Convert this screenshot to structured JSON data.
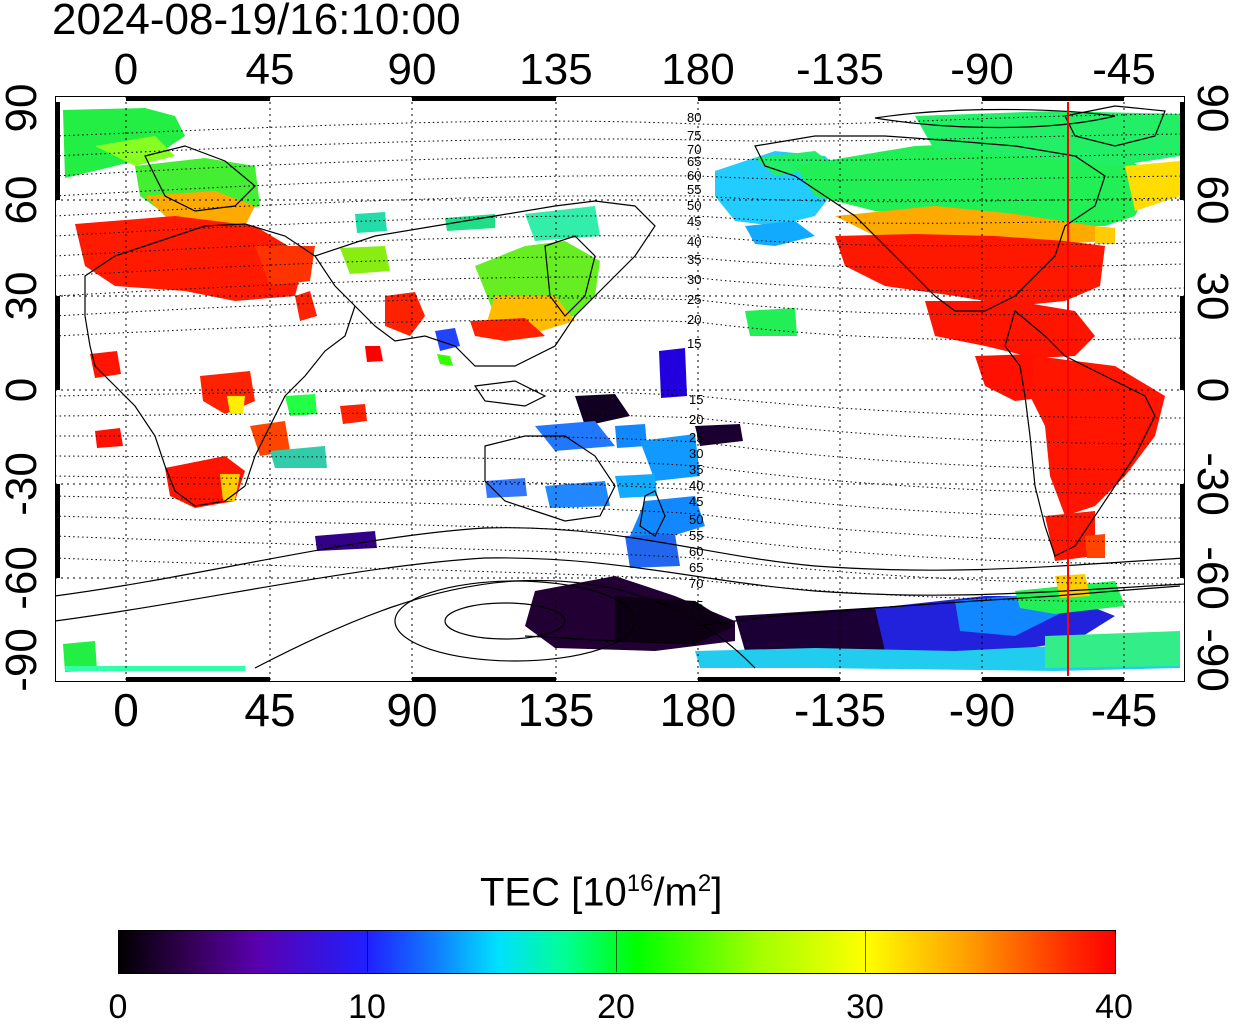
{
  "timestamp": "2024-08-19/16:10:00",
  "top_ticks": [
    "0",
    "45",
    "90",
    "135",
    "180",
    "-135",
    "-90",
    "-45"
  ],
  "bottom_ticks": [
    "0",
    "45",
    "90",
    "135",
    "180",
    "-135",
    "-90",
    "-45"
  ],
  "left_ticks": [
    "90",
    "60",
    "30",
    "0",
    "-30",
    "-60",
    "-90"
  ],
  "right_ticks": [
    "90",
    "60",
    "30",
    "0",
    "-30",
    "-60",
    "-90"
  ],
  "contour_labels_north": [
    "80",
    "75",
    "70",
    "65",
    "60",
    "55",
    "50",
    "45",
    "40",
    "35",
    "30",
    "25",
    "20",
    "15"
  ],
  "contour_labels_south": [
    "15",
    "20",
    "25",
    "30",
    "35",
    "40",
    "45",
    "50",
    "55",
    "60",
    "65",
    "70",
    "75"
  ],
  "colorbar": {
    "title": "TEC  [10",
    "title_sup1": "16",
    "title_mid": "/m",
    "title_sup2": "2",
    "title_end": "]",
    "ticks": [
      "0",
      "10",
      "20",
      "30",
      "40"
    ],
    "min": 0,
    "max": 40
  },
  "colors": {
    "terminator_line": "#ff0000",
    "coastline": "#000000",
    "tec_low": "#000000",
    "tec_high": "#ff0000"
  }
}
